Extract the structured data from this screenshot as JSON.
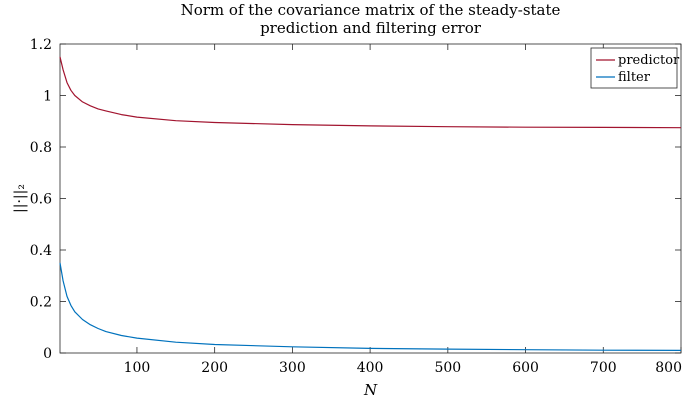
{
  "chart_data": {
    "type": "line",
    "title": [
      "Norm of the covariance matrix of the steady-state",
      "prediction and filtering error"
    ],
    "xlabel": "N",
    "ylabel": "||·||₂",
    "xlim": [
      1,
      800
    ],
    "ylim": [
      0,
      1.2
    ],
    "xticks": [
      100,
      200,
      300,
      400,
      500,
      600,
      700,
      800
    ],
    "yticks": [
      0,
      0.2,
      0.4,
      0.6,
      0.8,
      1,
      1.2
    ],
    "xtick_labels": [
      "100",
      "200",
      "300",
      "400",
      "500",
      "600",
      "700",
      "800"
    ],
    "ytick_labels": [
      "0",
      "0.2",
      "0.4",
      "0.6",
      "0.8",
      "1",
      "1.2"
    ],
    "grid": false,
    "legend": "top-right",
    "series": [
      {
        "name": "predictor",
        "color": "#a2142f",
        "x": [
          1,
          5,
          10,
          15,
          20,
          30,
          40,
          50,
          60,
          80,
          100,
          150,
          200,
          300,
          400,
          500,
          600,
          700,
          800
        ],
        "y": [
          1.15,
          1.1,
          1.05,
          1.02,
          1.0,
          0.975,
          0.96,
          0.948,
          0.94,
          0.926,
          0.916,
          0.902,
          0.895,
          0.887,
          0.882,
          0.879,
          0.877,
          0.876,
          0.875
        ]
      },
      {
        "name": "filter",
        "color": "#0072bd",
        "x": [
          1,
          5,
          10,
          15,
          20,
          30,
          40,
          50,
          60,
          80,
          100,
          150,
          200,
          300,
          400,
          500,
          600,
          700,
          800
        ],
        "y": [
          0.35,
          0.28,
          0.22,
          0.185,
          0.16,
          0.13,
          0.11,
          0.095,
          0.083,
          0.068,
          0.058,
          0.042,
          0.033,
          0.024,
          0.018,
          0.015,
          0.013,
          0.011,
          0.01
        ]
      }
    ]
  }
}
